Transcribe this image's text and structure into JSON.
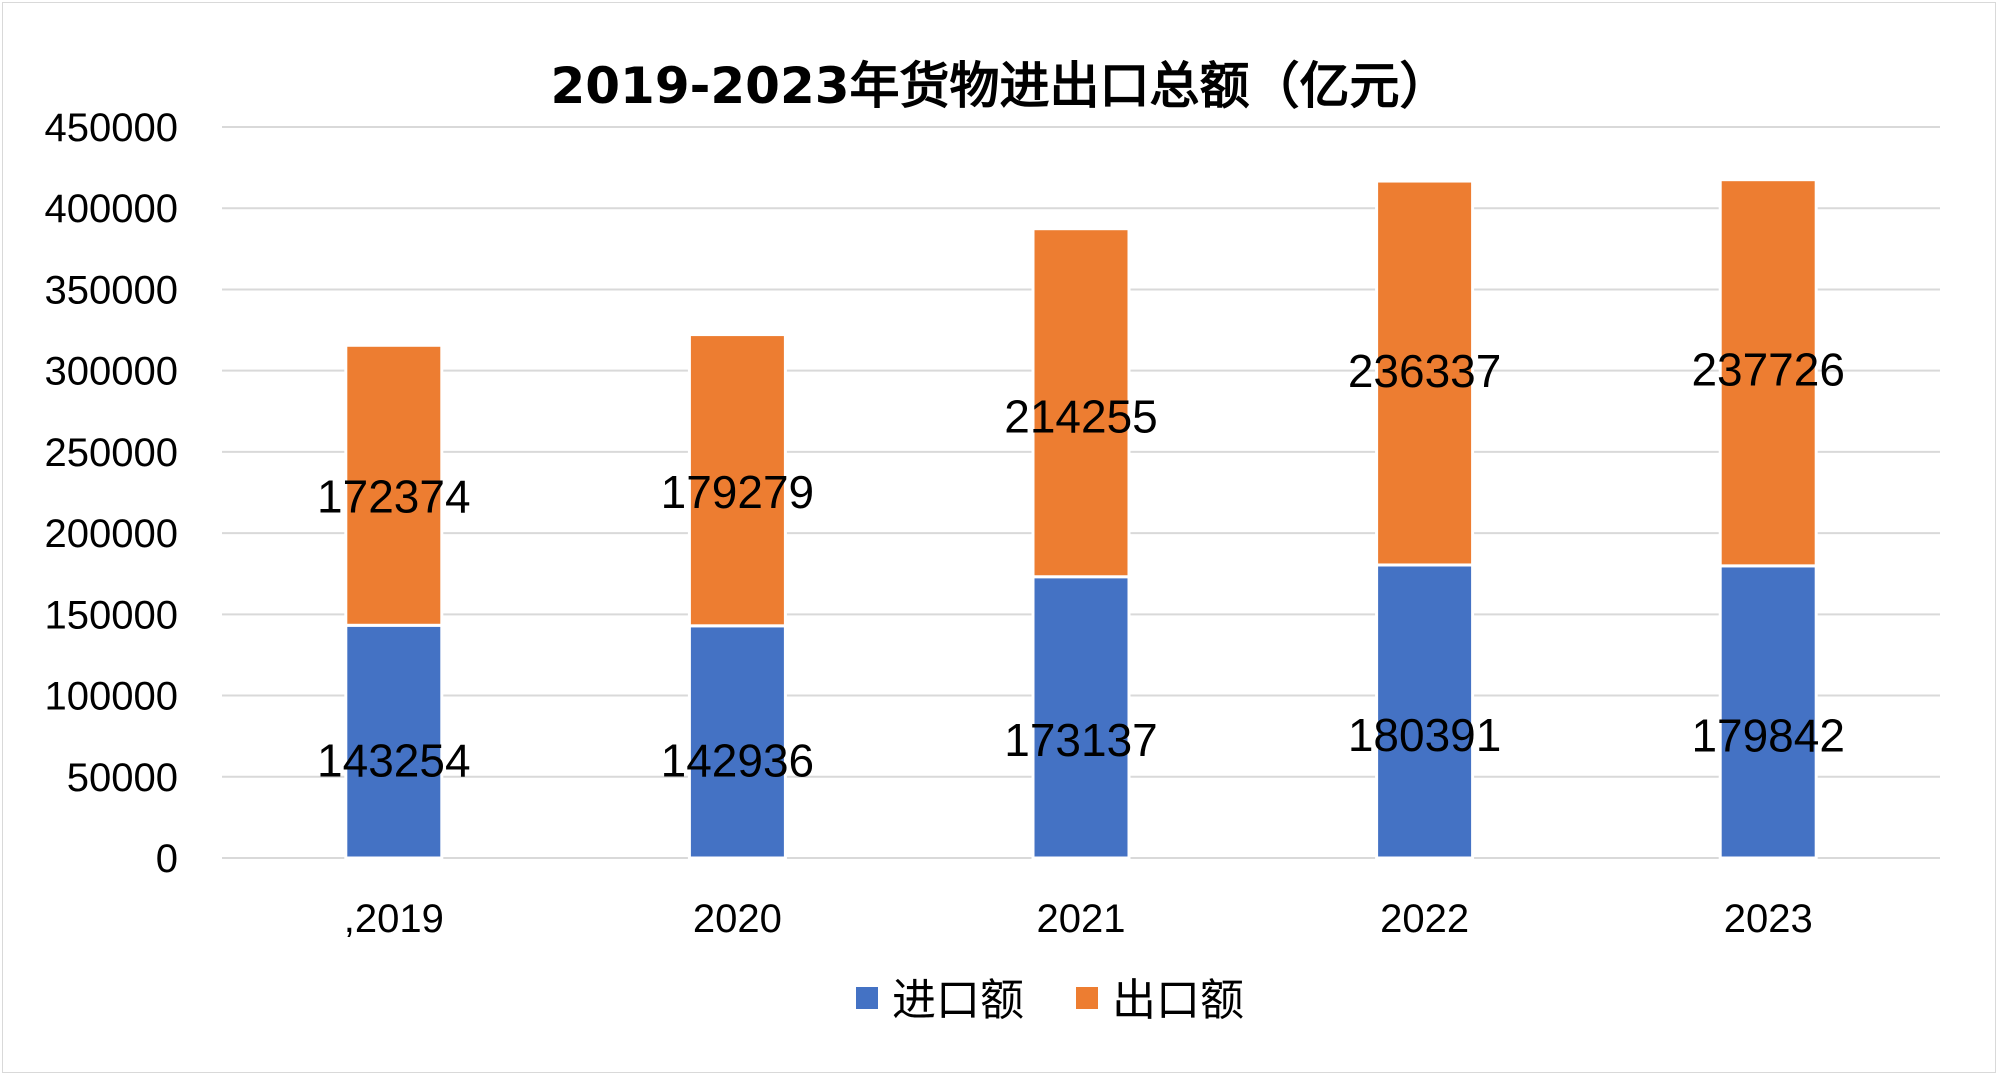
{
  "chart_data": {
    "type": "bar",
    "stacked": true,
    "title": "2019-2023年货物进出口总额（亿元）",
    "xlabel": "",
    "ylabel": "",
    "categories": [
      ",2019",
      "2020",
      "2021",
      "2022",
      "2023"
    ],
    "series": [
      {
        "name": "进口额",
        "color": "#4472c4",
        "values": [
          143254,
          142936,
          173137,
          180391,
          179842
        ]
      },
      {
        "name": "出口额",
        "color": "#ed7d31",
        "values": [
          172374,
          179279,
          214255,
          236337,
          237726
        ]
      }
    ],
    "ylim": [
      0,
      450000
    ],
    "yticks": [
      0,
      50000,
      100000,
      150000,
      200000,
      250000,
      300000,
      350000,
      400000,
      450000
    ],
    "grid": true,
    "legend_position": "bottom",
    "data_labels": true
  }
}
